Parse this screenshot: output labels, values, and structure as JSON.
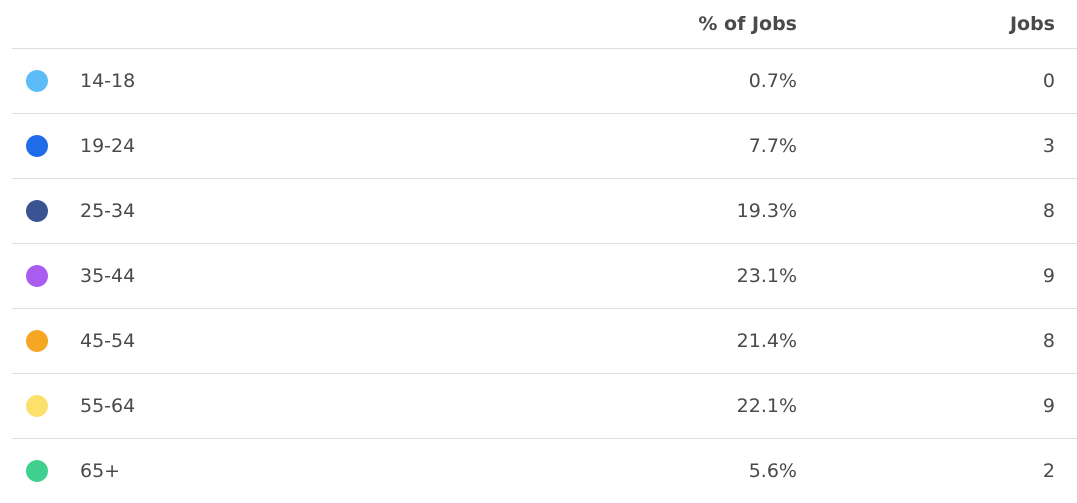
{
  "table": {
    "header": [
      "% of Jobs",
      "Jobs"
    ],
    "rows": [
      {
        "label": "14-18",
        "percent": "0.7%",
        "jobs": "0",
        "color": "#5bbcf7"
      },
      {
        "label": "19-24",
        "percent": "7.7%",
        "jobs": "3",
        "color": "#1f6be8"
      },
      {
        "label": "25-34",
        "percent": "19.3%",
        "jobs": "8",
        "color": "#3a5493"
      },
      {
        "label": "35-44",
        "percent": "23.1%",
        "jobs": "9",
        "color": "#a95cf0"
      },
      {
        "label": "45-54",
        "percent": "21.4%",
        "jobs": "8",
        "color": "#f5a623"
      },
      {
        "label": "55-64",
        "percent": "22.1%",
        "jobs": "9",
        "color": "#fde06b"
      },
      {
        "label": "65+",
        "percent": "5.6%",
        "jobs": "2",
        "color": "#3fd08f"
      }
    ]
  }
}
